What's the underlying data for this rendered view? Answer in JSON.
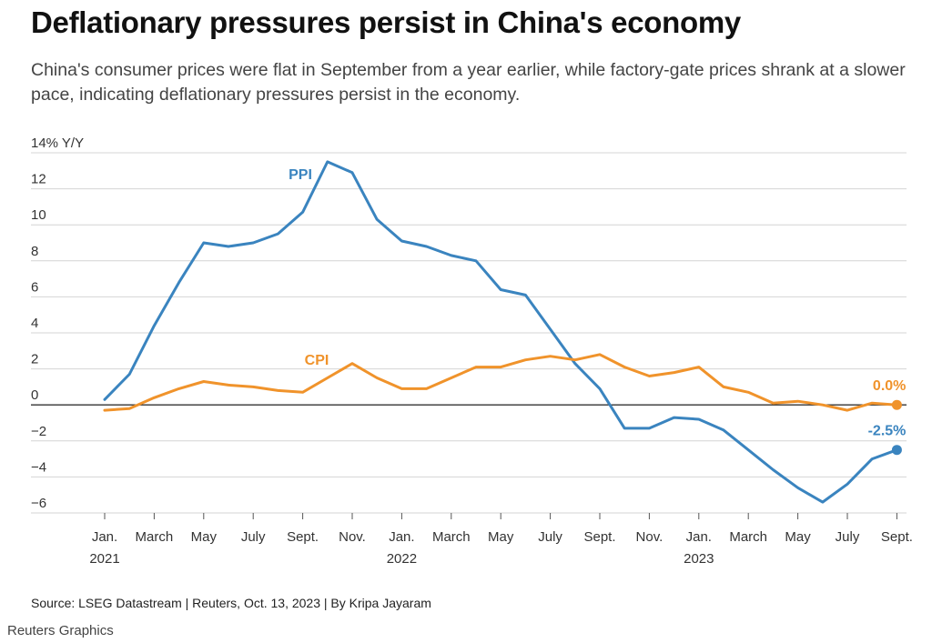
{
  "header": {
    "title": "Deflationary pressures persist in China's economy",
    "subtitle": "China's consumer prices were flat in September from a year earlier, while factory-gate prices shrank at a slower pace, indicating deflationary pressures persist in the economy."
  },
  "footer": {
    "source": "Source: LSEG Datastream | Reuters, Oct. 13, 2023 | By Kripa Jayaram",
    "brand": "Reuters Graphics"
  },
  "chart_data": {
    "type": "line",
    "ylabel": "Y/Y",
    "ylim": [
      -6,
      14
    ],
    "yticks": [
      14,
      12,
      10,
      8,
      6,
      4,
      2,
      0,
      -2,
      -4,
      -6
    ],
    "ytick_labels": [
      "14% Y/Y",
      "12",
      "10",
      "8",
      "6",
      "4",
      "2",
      "0",
      "−2",
      "−4",
      "−6"
    ],
    "x": [
      "2021-01",
      "2021-02",
      "2021-03",
      "2021-04",
      "2021-05",
      "2021-06",
      "2021-07",
      "2021-08",
      "2021-09",
      "2021-10",
      "2021-11",
      "2021-12",
      "2022-01",
      "2022-02",
      "2022-03",
      "2022-04",
      "2022-05",
      "2022-06",
      "2022-07",
      "2022-08",
      "2022-09",
      "2022-10",
      "2022-11",
      "2022-12",
      "2023-01",
      "2023-02",
      "2023-03",
      "2023-04",
      "2023-05",
      "2023-06",
      "2023-07",
      "2023-08",
      "2023-09"
    ],
    "xticks": [
      {
        "label": "Jan.",
        "sub": "2021",
        "x": "2021-01"
      },
      {
        "label": "March",
        "x": "2021-03"
      },
      {
        "label": "May",
        "x": "2021-05"
      },
      {
        "label": "July",
        "x": "2021-07"
      },
      {
        "label": "Sept.",
        "x": "2021-09"
      },
      {
        "label": "Nov.",
        "x": "2021-11"
      },
      {
        "label": "Jan.",
        "sub": "2022",
        "x": "2022-01"
      },
      {
        "label": "March",
        "x": "2022-03"
      },
      {
        "label": "May",
        "x": "2022-05"
      },
      {
        "label": "July",
        "x": "2022-07"
      },
      {
        "label": "Sept.",
        "x": "2022-09"
      },
      {
        "label": "Nov.",
        "x": "2022-11"
      },
      {
        "label": "Jan.",
        "sub": "2023",
        "x": "2023-01"
      },
      {
        "label": "March",
        "x": "2023-03"
      },
      {
        "label": "May",
        "x": "2023-05"
      },
      {
        "label": "July",
        "x": "2023-07"
      },
      {
        "label": "Sept.",
        "x": "2023-09"
      }
    ],
    "series": [
      {
        "name": "PPI",
        "color": "#3a84bf",
        "end_label": "-2.5%",
        "values": [
          0.3,
          1.7,
          4.4,
          6.8,
          9.0,
          8.8,
          9.0,
          9.5,
          10.7,
          13.5,
          12.9,
          10.3,
          9.1,
          8.8,
          8.3,
          8.0,
          6.4,
          6.1,
          4.2,
          2.3,
          0.9,
          -1.3,
          -1.3,
          -0.7,
          -0.8,
          -1.4,
          -2.5,
          -3.6,
          -4.6,
          -5.4,
          -4.4,
          -3.0,
          -2.5
        ]
      },
      {
        "name": "CPI",
        "color": "#f0932b",
        "end_label": "0.0%",
        "values": [
          -0.3,
          -0.2,
          0.4,
          0.9,
          1.3,
          1.1,
          1.0,
          0.8,
          0.7,
          1.5,
          2.3,
          1.5,
          0.9,
          0.9,
          1.5,
          2.1,
          2.1,
          2.5,
          2.7,
          2.5,
          2.8,
          2.1,
          1.6,
          1.8,
          2.1,
          1.0,
          0.7,
          0.1,
          0.2,
          0.0,
          -0.3,
          0.1,
          0.0
        ]
      }
    ]
  }
}
